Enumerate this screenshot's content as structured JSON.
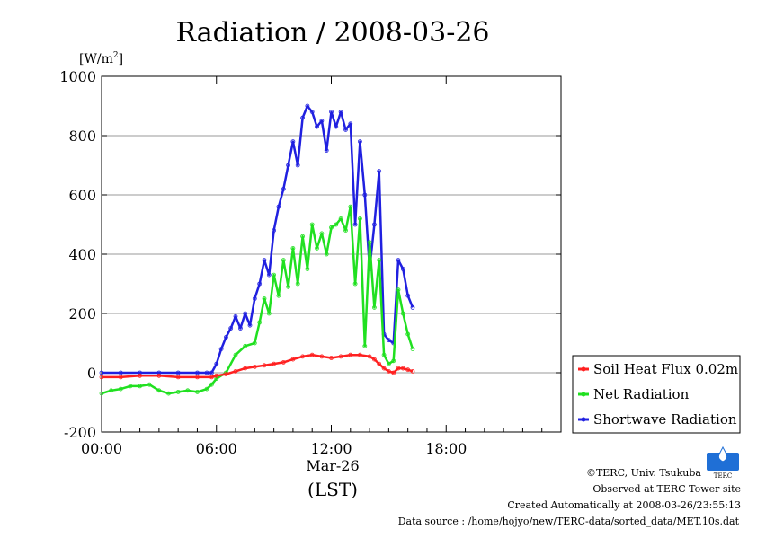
{
  "chart_data": {
    "type": "line",
    "title": "Radiation / 2008-03-26",
    "ylabel": "[W/m2]",
    "ylabel_parts": {
      "pre": "[W/m",
      "sup": "2",
      "post": "]"
    },
    "xlabel_date": "Mar-26",
    "xlabel": "(LST)",
    "xlim": [
      0,
      24
    ],
    "ylim": [
      -200,
      1000
    ],
    "y_ticks": [
      -200,
      0,
      200,
      400,
      600,
      800,
      1000
    ],
    "y_tick_labels": [
      "-200",
      "0",
      "200",
      "400",
      "600",
      "800",
      "1000"
    ],
    "x_ticks": [
      0,
      6,
      12,
      18
    ],
    "x_tick_labels": [
      "00:00",
      "06:00",
      "12:00",
      "18:00"
    ],
    "grid": "horizontal",
    "legend_position": "right",
    "series": [
      {
        "name": "Soil Heat Flux 0.02m",
        "color": "#ff2020",
        "x": [
          0,
          1,
          2,
          3,
          4,
          5,
          5.75,
          6,
          6.5,
          7,
          7.5,
          8,
          8.5,
          9,
          9.5,
          10,
          10.5,
          11,
          11.5,
          12,
          12.5,
          13,
          13.5,
          14,
          14.25,
          14.5,
          14.75,
          15,
          15.25,
          15.5,
          15.75,
          16,
          16.25
        ],
        "y": [
          -15,
          -15,
          -10,
          -10,
          -15,
          -15,
          -15,
          -10,
          -5,
          5,
          15,
          20,
          25,
          30,
          35,
          45,
          55,
          60,
          55,
          50,
          55,
          60,
          60,
          55,
          45,
          30,
          15,
          5,
          0,
          15,
          15,
          10,
          5
        ]
      },
      {
        "name": "Net Radiation",
        "color": "#20e020",
        "x": [
          0,
          0.5,
          1,
          1.5,
          2,
          2.5,
          3,
          3.5,
          4,
          4.5,
          5,
          5.5,
          5.75,
          6,
          6.5,
          7,
          7.5,
          8,
          8.25,
          8.5,
          8.75,
          9,
          9.25,
          9.5,
          9.75,
          10,
          10.25,
          10.5,
          10.75,
          11,
          11.25,
          11.5,
          11.75,
          12,
          12.25,
          12.5,
          12.75,
          13,
          13.25,
          13.5,
          13.75,
          14,
          14.25,
          14.5,
          14.75,
          15,
          15.25,
          15.5,
          15.75,
          16,
          16.25
        ],
        "y": [
          -70,
          -60,
          -55,
          -45,
          -45,
          -40,
          -60,
          -70,
          -65,
          -60,
          -65,
          -55,
          -40,
          -20,
          0,
          60,
          90,
          100,
          170,
          250,
          200,
          330,
          260,
          380,
          290,
          420,
          300,
          460,
          350,
          500,
          420,
          470,
          400,
          490,
          500,
          520,
          480,
          560,
          300,
          520,
          90,
          440,
          220,
          380,
          60,
          30,
          40,
          280,
          200,
          130,
          80
        ]
      },
      {
        "name": "Shortwave Radiation",
        "color": "#2020e0",
        "x": [
          0,
          1,
          2,
          3,
          4,
          5,
          5.5,
          5.75,
          6,
          6.25,
          6.5,
          6.75,
          7,
          7.25,
          7.5,
          7.75,
          8,
          8.25,
          8.5,
          8.75,
          9,
          9.25,
          9.5,
          9.75,
          10,
          10.25,
          10.5,
          10.75,
          11,
          11.25,
          11.5,
          11.75,
          12,
          12.25,
          12.5,
          12.75,
          13,
          13.25,
          13.5,
          13.75,
          14,
          14.25,
          14.5,
          14.75,
          15,
          15.25,
          15.5,
          15.75,
          16,
          16.25
        ],
        "y": [
          0,
          0,
          0,
          0,
          0,
          0,
          0,
          0,
          30,
          80,
          120,
          150,
          190,
          150,
          200,
          160,
          250,
          300,
          380,
          330,
          480,
          560,
          620,
          700,
          780,
          700,
          860,
          900,
          880,
          830,
          850,
          750,
          880,
          830,
          880,
          820,
          840,
          500,
          780,
          600,
          350,
          500,
          680,
          130,
          110,
          100,
          380,
          350,
          260,
          220
        ]
      }
    ]
  },
  "credits": {
    "copyright": "©TERC, Univ. Tsukuba",
    "observed": "Observed at TERC Tower site",
    "created": "Created Automatically at 2008-03-26/23:55:13",
    "source": "Data source : /home/hojyo/new/TERC-data/sorted_data/MET.10s.dat",
    "logo_text": "TERC"
  }
}
